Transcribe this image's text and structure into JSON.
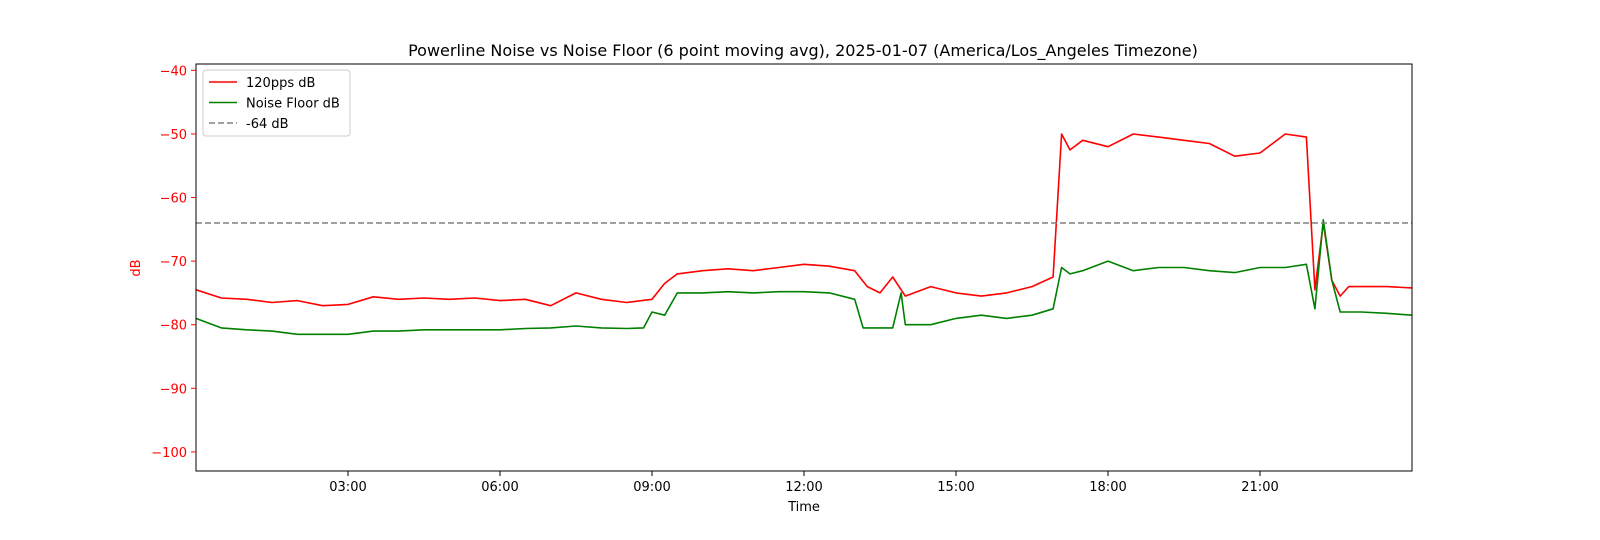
{
  "chart_data": {
    "type": "line",
    "title": "Powerline Noise vs Noise Floor (6 point moving avg), 2025-01-07 (America/Los_Angeles Timezone)",
    "xlabel": "Time",
    "ylabel": "dB",
    "xlim": [
      "00:00",
      "24:00"
    ],
    "ylim": [
      -103,
      -39
    ],
    "x_ticks": [
      "03:00",
      "06:00",
      "09:00",
      "12:00",
      "15:00",
      "18:00",
      "21:00"
    ],
    "y_ticks": [
      -40,
      -50,
      -60,
      -70,
      -80,
      -90,
      -100
    ],
    "grid": false,
    "legend_position": "top-left",
    "y_axis_color": "#ff0000",
    "series": [
      {
        "name": "120pps dB",
        "color": "#ff0000",
        "x": [
          "00:00",
          "00:30",
          "01:00",
          "01:30",
          "02:00",
          "02:30",
          "03:00",
          "03:30",
          "04:00",
          "04:30",
          "05:00",
          "05:30",
          "06:00",
          "06:30",
          "07:00",
          "07:30",
          "08:00",
          "08:30",
          "09:00",
          "09:15",
          "09:30",
          "10:00",
          "10:30",
          "11:00",
          "11:30",
          "12:00",
          "12:30",
          "13:00",
          "13:15",
          "13:30",
          "13:45",
          "14:00",
          "14:30",
          "15:00",
          "15:30",
          "16:00",
          "16:30",
          "16:55",
          "17:05",
          "17:15",
          "17:30",
          "18:00",
          "18:30",
          "19:00",
          "19:30",
          "20:00",
          "20:30",
          "21:00",
          "21:30",
          "21:55",
          "22:05",
          "22:15",
          "22:25",
          "22:35",
          "22:45",
          "23:00",
          "23:30",
          "24:00"
        ],
        "values": [
          -74.5,
          -75.8,
          -76.0,
          -76.5,
          -76.2,
          -77.0,
          -76.8,
          -75.6,
          -76.0,
          -75.8,
          -76.0,
          -75.8,
          -76.2,
          -76.0,
          -77.0,
          -75.0,
          -76.0,
          -76.5,
          -76.0,
          -73.5,
          -72.0,
          -71.5,
          -71.2,
          -71.5,
          -71.0,
          -70.5,
          -70.8,
          -71.5,
          -74.0,
          -75.0,
          -72.5,
          -75.5,
          -74.0,
          -75.0,
          -75.5,
          -75.0,
          -74.0,
          -72.5,
          -50.0,
          -52.5,
          -51.0,
          -52.0,
          -50.0,
          -50.5,
          -51.0,
          -51.5,
          -53.5,
          -53.0,
          -50.0,
          -50.5,
          -74.5,
          -64.0,
          -73.0,
          -75.5,
          -74.0,
          -74.0,
          -74.0,
          -74.2
        ]
      },
      {
        "name": "Noise Floor dB",
        "color": "#008000",
        "x": [
          "00:00",
          "00:30",
          "01:00",
          "01:30",
          "02:00",
          "02:30",
          "03:00",
          "03:30",
          "04:00",
          "04:30",
          "05:00",
          "05:30",
          "06:00",
          "06:30",
          "07:00",
          "07:30",
          "08:00",
          "08:30",
          "08:50",
          "09:00",
          "09:15",
          "09:30",
          "10:00",
          "10:30",
          "11:00",
          "11:30",
          "12:00",
          "12:30",
          "13:00",
          "13:10",
          "13:30",
          "13:45",
          "13:55",
          "14:00",
          "14:30",
          "15:00",
          "15:30",
          "16:00",
          "16:30",
          "16:55",
          "17:05",
          "17:15",
          "17:30",
          "18:00",
          "18:30",
          "19:00",
          "19:30",
          "20:00",
          "20:30",
          "21:00",
          "21:30",
          "21:55",
          "22:05",
          "22:15",
          "22:25",
          "22:35",
          "23:00",
          "23:30",
          "24:00"
        ],
        "values": [
          -79.0,
          -80.5,
          -80.8,
          -81.0,
          -81.5,
          -81.5,
          -81.5,
          -81.0,
          -81.0,
          -80.8,
          -80.8,
          -80.8,
          -80.8,
          -80.6,
          -80.5,
          -80.2,
          -80.5,
          -80.6,
          -80.5,
          -78.0,
          -78.5,
          -75.0,
          -75.0,
          -74.8,
          -75.0,
          -74.8,
          -74.8,
          -75.0,
          -76.0,
          -80.5,
          -80.5,
          -80.5,
          -75.0,
          -80.0,
          -80.0,
          -79.0,
          -78.5,
          -79.0,
          -78.5,
          -77.5,
          -71.0,
          -72.0,
          -71.5,
          -70.0,
          -71.5,
          -71.0,
          -71.0,
          -71.5,
          -71.8,
          -71.0,
          -71.0,
          -70.5,
          -77.5,
          -63.5,
          -73.0,
          -78.0,
          -78.0,
          -78.2,
          -78.5
        ]
      },
      {
        "name": "-64 dB",
        "color": "#808080",
        "dashed": true,
        "x": [
          "00:00",
          "24:00"
        ],
        "values": [
          -64,
          -64
        ]
      }
    ]
  }
}
